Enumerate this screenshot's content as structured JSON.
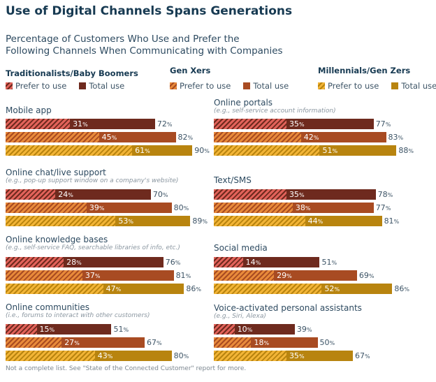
{
  "title": "Use of Digital Channels Spans Generations",
  "subtitle": "Percentage of Customers Who Use and Prefer the Following Channels When Communicating with Companies",
  "footnote": "Not a complete list. See \"State of the Connected Customer\" report for more.",
  "chart_data": {
    "type": "bar",
    "orientation": "horizontal",
    "unit": "%",
    "legend": {
      "placement": "top",
      "prefer_label": "Prefer to use",
      "total_label": "Total use"
    },
    "generations": [
      {
        "name": "Traditionalists/Baby Boomers",
        "total_color": "#6e2a1e",
        "prefer_color": "#e2625a"
      },
      {
        "name": "Gen Xers",
        "total_color": "#a84b22",
        "prefer_color": "#e88a3a"
      },
      {
        "name": "Millennials/Gen Zers",
        "total_color": "#b8840f",
        "prefer_color": "#f2b436"
      }
    ],
    "categories": [
      {
        "name": "Mobile app",
        "note": "",
        "prefer": [
          31,
          45,
          61
        ],
        "total": [
          72,
          82,
          90
        ]
      },
      {
        "name": "Online chat/live support",
        "note": "(e.g., pop-up support window on a company's website)",
        "prefer": [
          24,
          39,
          53
        ],
        "total": [
          70,
          80,
          89
        ]
      },
      {
        "name": "Online knowledge bases",
        "note": "(e.g., self-service FAQ, searchable libraries of info, etc.)",
        "prefer": [
          28,
          37,
          47
        ],
        "total": [
          76,
          81,
          86
        ]
      },
      {
        "name": "Online communities",
        "note": "(i.e., forums to interact with other customers)",
        "prefer": [
          15,
          27,
          43
        ],
        "total": [
          51,
          67,
          80
        ]
      },
      {
        "name": "Online portals",
        "note": "(e.g., self-service account information)",
        "prefer": [
          35,
          42,
          51
        ],
        "total": [
          77,
          83,
          88
        ]
      },
      {
        "name": "Text/SMS",
        "note": "",
        "prefer": [
          35,
          38,
          44
        ],
        "total": [
          78,
          77,
          81
        ]
      },
      {
        "name": "Social media",
        "note": "",
        "prefer": [
          14,
          29,
          52
        ],
        "total": [
          51,
          69,
          86
        ]
      },
      {
        "name": "Voice-activated personal assistants",
        "note": "(e.g., Siri, Alexa)",
        "prefer": [
          10,
          18,
          35
        ],
        "total": [
          39,
          50,
          67
        ]
      }
    ]
  }
}
